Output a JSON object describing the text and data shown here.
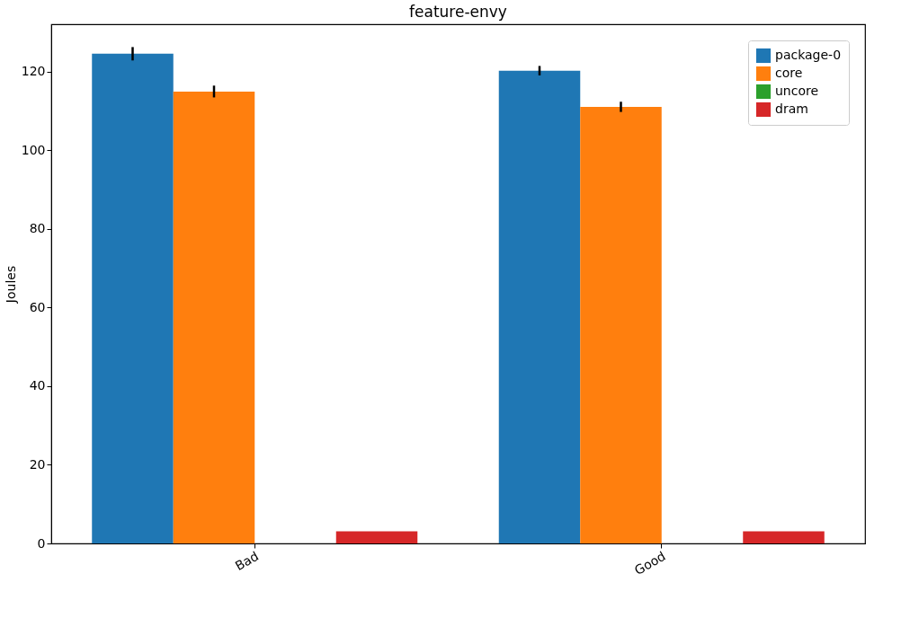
{
  "chart_data": {
    "type": "bar",
    "title": "feature-envy",
    "ylabel": "Joules",
    "categories": [
      "Bad",
      "Good"
    ],
    "series": [
      {
        "name": "package-0",
        "color": "#1f77b4",
        "values": [
          124.5,
          120.2
        ],
        "errors": [
          1.7,
          1.2
        ]
      },
      {
        "name": "core",
        "color": "#ff7f0e",
        "values": [
          114.9,
          111.0
        ],
        "errors": [
          1.5,
          1.3
        ]
      },
      {
        "name": "uncore",
        "color": "#2ca02c",
        "values": [
          0,
          0
        ],
        "errors": [
          null,
          null
        ]
      },
      {
        "name": "dram",
        "color": "#d62728",
        "values": [
          3.1,
          3.1
        ],
        "errors": [
          null,
          null
        ]
      }
    ],
    "ylim": [
      0,
      132
    ],
    "yticks": [
      0,
      20,
      40,
      60,
      80,
      100,
      120
    ],
    "grid": false,
    "legend": "top right"
  }
}
